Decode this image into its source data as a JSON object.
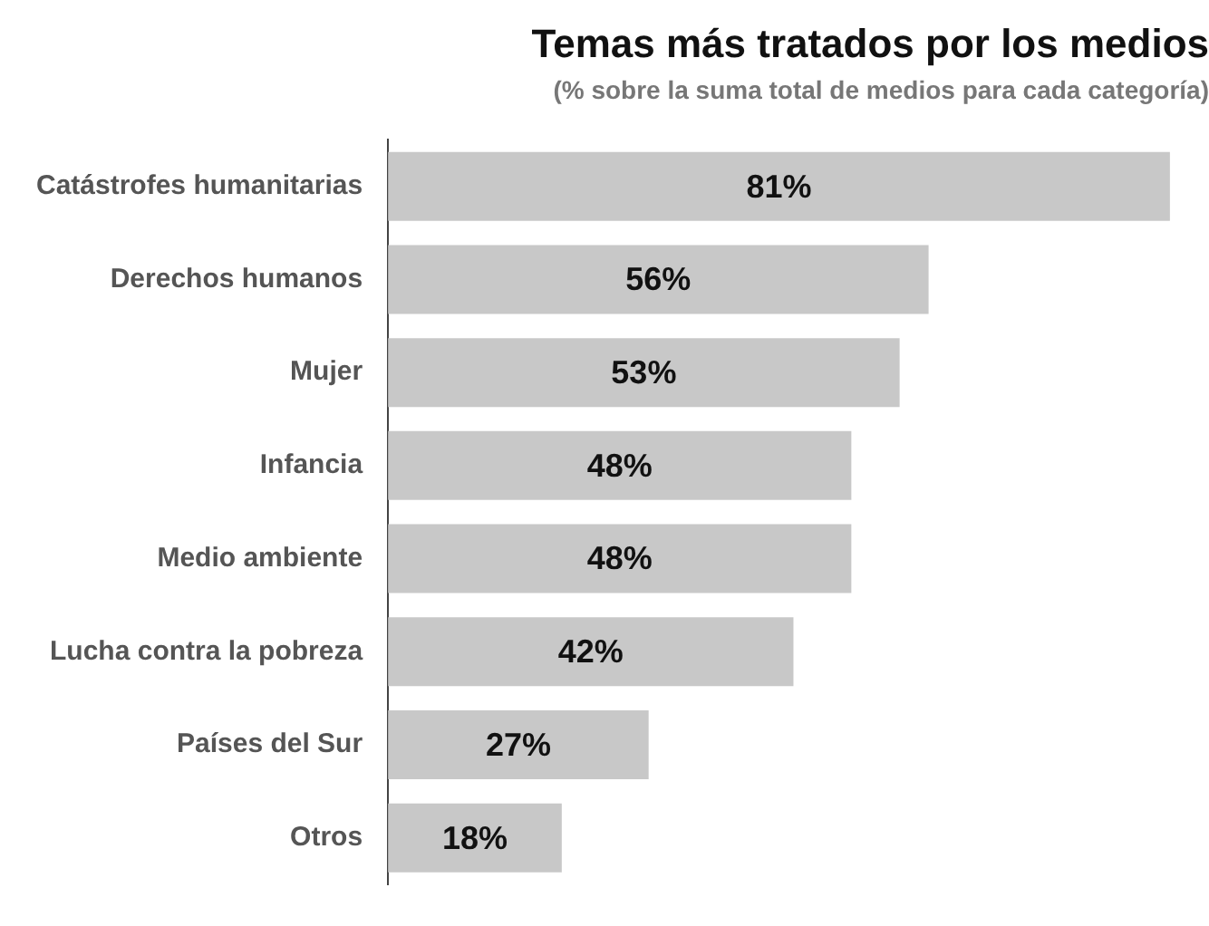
{
  "chart_data": {
    "type": "bar",
    "orientation": "horizontal",
    "title": "Temas más tratados por los medios",
    "subtitle": "(% sobre la suma total de medios para cada categoría)",
    "categories": [
      "Catástrofes humanitarias",
      "Derechos humanos",
      "Mujer",
      "Infancia",
      "Medio ambiente",
      "Lucha contra la pobreza",
      "Países del Sur",
      "Otros"
    ],
    "values": [
      81,
      56,
      53,
      48,
      48,
      42,
      27,
      18
    ],
    "value_labels": [
      "81%",
      "56%",
      "53%",
      "48%",
      "48%",
      "42%",
      "27%",
      "18%"
    ],
    "color": "#c8c8c8"
  }
}
